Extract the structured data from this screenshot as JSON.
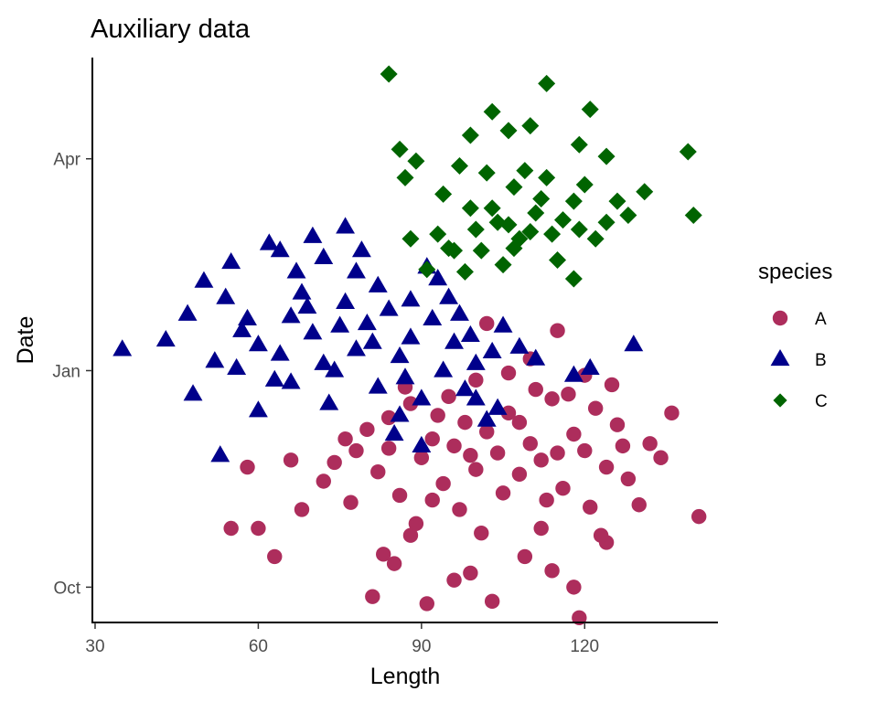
{
  "chart_data": {
    "type": "scatter",
    "title": "Auxiliary data",
    "xlabel": "Length",
    "ylabel": "Date",
    "xlim": [
      29.5,
      144.5
    ],
    "ylim": [
      "2010-09-16",
      "2011-05-14"
    ],
    "x_ticks": [
      30,
      60,
      90,
      120
    ],
    "y_ticks": [
      {
        "label": "Oct",
        "value": "2010-10-01"
      },
      {
        "label": "Jan",
        "value": "2011-01-01"
      },
      {
        "label": "Apr",
        "value": "2011-04-01"
      }
    ],
    "grid": false,
    "legend": {
      "title": "species",
      "position": "right"
    },
    "series": [
      {
        "name": "A",
        "marker": "circle",
        "color": "#AD2D5C",
        "points": [
          [
            55,
            "2010-10-26"
          ],
          [
            60,
            "2010-10-26"
          ],
          [
            63,
            "2010-10-14"
          ],
          [
            58,
            "2010-11-21"
          ],
          [
            66,
            "2010-11-24"
          ],
          [
            68,
            "2010-11-03"
          ],
          [
            72,
            "2010-11-15"
          ],
          [
            74,
            "2010-11-23"
          ],
          [
            76,
            "2010-12-03"
          ],
          [
            78,
            "2010-11-28"
          ],
          [
            80,
            "2010-12-07"
          ],
          [
            82,
            "2010-11-19"
          ],
          [
            84,
            "2010-12-12"
          ],
          [
            86,
            "2010-11-09"
          ],
          [
            88,
            "2010-12-18"
          ],
          [
            90,
            "2010-11-25"
          ],
          [
            92,
            "2010-12-03"
          ],
          [
            94,
            "2010-11-14"
          ],
          [
            96,
            "2010-11-30"
          ],
          [
            98,
            "2010-12-10"
          ],
          [
            100,
            "2010-11-20"
          ],
          [
            102,
            "2010-12-06"
          ],
          [
            104,
            "2010-11-27"
          ],
          [
            106,
            "2010-12-14"
          ],
          [
            108,
            "2010-11-18"
          ],
          [
            110,
            "2010-12-01"
          ],
          [
            112,
            "2010-11-24"
          ],
          [
            114,
            "2010-12-20"
          ],
          [
            116,
            "2010-11-12"
          ],
          [
            118,
            "2010-12-05"
          ],
          [
            120,
            "2010-11-28"
          ],
          [
            122,
            "2010-12-16"
          ],
          [
            124,
            "2010-11-21"
          ],
          [
            126,
            "2010-12-09"
          ],
          [
            128,
            "2010-11-16"
          ],
          [
            130,
            "2010-11-05"
          ],
          [
            132,
            "2010-12-01"
          ],
          [
            134,
            "2010-11-25"
          ],
          [
            136,
            "2010-12-14"
          ],
          [
            141,
            "2010-10-31"
          ],
          [
            81,
            "2010-09-27"
          ],
          [
            85,
            "2010-10-11"
          ],
          [
            91,
            "2010-09-24"
          ],
          [
            96,
            "2010-10-04"
          ],
          [
            103,
            "2010-09-25"
          ],
          [
            109,
            "2010-10-14"
          ],
          [
            118,
            "2010-10-01"
          ],
          [
            119,
            "2010-09-18"
          ],
          [
            124,
            "2010-10-20"
          ],
          [
            83,
            "2010-10-15"
          ],
          [
            88,
            "2010-10-23"
          ],
          [
            99,
            "2010-10-07"
          ],
          [
            114,
            "2010-10-08"
          ],
          [
            102,
            "2011-01-21"
          ],
          [
            106,
            "2010-12-31"
          ],
          [
            110,
            "2011-01-06"
          ],
          [
            115,
            "2011-01-18"
          ],
          [
            120,
            "2010-12-30"
          ],
          [
            125,
            "2010-12-26"
          ],
          [
            95,
            "2010-12-21"
          ],
          [
            87,
            "2010-12-25"
          ],
          [
            100,
            "2010-12-28"
          ],
          [
            111,
            "2010-12-24"
          ],
          [
            117,
            "2010-12-22"
          ],
          [
            92,
            "2010-11-07"
          ],
          [
            97,
            "2010-11-03"
          ],
          [
            105,
            "2010-11-10"
          ],
          [
            113,
            "2010-11-07"
          ],
          [
            121,
            "2010-11-04"
          ],
          [
            127,
            "2010-11-30"
          ],
          [
            89,
            "2010-10-28"
          ],
          [
            101,
            "2010-10-24"
          ],
          [
            112,
            "2010-10-26"
          ],
          [
            123,
            "2010-10-23"
          ],
          [
            77,
            "2010-11-06"
          ],
          [
            84,
            "2010-11-29"
          ],
          [
            93,
            "2010-12-13"
          ],
          [
            108,
            "2010-12-10"
          ],
          [
            115,
            "2010-11-27"
          ],
          [
            99,
            "2010-11-26"
          ]
        ]
      },
      {
        "name": "B",
        "marker": "triangle",
        "color": "#00008B",
        "points": [
          [
            35,
            "2011-01-10"
          ],
          [
            43,
            "2011-01-14"
          ],
          [
            47,
            "2011-01-25"
          ],
          [
            48,
            "2010-12-22"
          ],
          [
            50,
            "2011-02-08"
          ],
          [
            52,
            "2011-01-05"
          ],
          [
            53,
            "2010-11-26"
          ],
          [
            55,
            "2011-02-16"
          ],
          [
            56,
            "2011-01-02"
          ],
          [
            58,
            "2011-01-23"
          ],
          [
            60,
            "2010-12-15"
          ],
          [
            62,
            "2011-02-24"
          ],
          [
            64,
            "2011-01-08"
          ],
          [
            66,
            "2010-12-27"
          ],
          [
            68,
            "2011-02-03"
          ],
          [
            70,
            "2011-01-17"
          ],
          [
            72,
            "2011-02-18"
          ],
          [
            74,
            "2011-01-01"
          ],
          [
            76,
            "2011-01-30"
          ],
          [
            78,
            "2011-02-12"
          ],
          [
            80,
            "2011-01-21"
          ],
          [
            82,
            "2010-12-25"
          ],
          [
            84,
            "2011-01-27"
          ],
          [
            86,
            "2011-01-07"
          ],
          [
            88,
            "2011-01-31"
          ],
          [
            90,
            "2010-12-20"
          ],
          [
            92,
            "2011-01-23"
          ],
          [
            94,
            "2011-01-01"
          ],
          [
            96,
            "2011-01-13"
          ],
          [
            98,
            "2010-12-24"
          ],
          [
            100,
            "2011-01-04"
          ],
          [
            102,
            "2010-12-11"
          ],
          [
            104,
            "2010-12-16"
          ],
          [
            108,
            "2011-01-11"
          ],
          [
            111,
            "2011-01-06"
          ],
          [
            118,
            "2010-12-30"
          ],
          [
            121,
            "2011-01-02"
          ],
          [
            129,
            "2011-01-12"
          ],
          [
            90,
            "2010-11-30"
          ],
          [
            85,
            "2010-12-05"
          ],
          [
            64,
            "2011-02-21"
          ],
          [
            70,
            "2011-02-27"
          ],
          [
            76,
            "2011-03-03"
          ],
          [
            60,
            "2011-01-12"
          ],
          [
            66,
            "2011-01-24"
          ],
          [
            72,
            "2011-01-04"
          ],
          [
            78,
            "2011-01-10"
          ],
          [
            82,
            "2011-02-06"
          ],
          [
            88,
            "2011-01-15"
          ],
          [
            93,
            "2011-02-09"
          ],
          [
            97,
            "2011-01-25"
          ],
          [
            103,
            "2011-01-09"
          ],
          [
            57,
            "2011-01-18"
          ],
          [
            63,
            "2010-12-28"
          ],
          [
            69,
            "2011-01-28"
          ],
          [
            75,
            "2011-01-20"
          ],
          [
            81,
            "2011-01-13"
          ],
          [
            87,
            "2010-12-29"
          ],
          [
            95,
            "2011-02-01"
          ],
          [
            99,
            "2011-01-16"
          ],
          [
            105,
            "2011-01-20"
          ],
          [
            54,
            "2011-02-01"
          ],
          [
            79,
            "2011-02-21"
          ],
          [
            91,
            "2011-02-14"
          ],
          [
            73,
            "2010-12-18"
          ],
          [
            67,
            "2011-02-12"
          ],
          [
            86,
            "2010-12-13"
          ],
          [
            100,
            "2010-12-20"
          ]
        ]
      },
      {
        "name": "C",
        "marker": "diamond",
        "color": "#006400",
        "points": [
          [
            84,
            "2011-05-07"
          ],
          [
            113,
            "2011-05-03"
          ],
          [
            121,
            "2011-04-22"
          ],
          [
            103,
            "2011-04-21"
          ],
          [
            86,
            "2011-04-05"
          ],
          [
            89,
            "2011-03-31"
          ],
          [
            87,
            "2011-03-24"
          ],
          [
            99,
            "2011-04-11"
          ],
          [
            106,
            "2011-04-13"
          ],
          [
            110,
            "2011-04-15"
          ],
          [
            119,
            "2011-04-07"
          ],
          [
            124,
            "2011-04-02"
          ],
          [
            139,
            "2011-04-04"
          ],
          [
            140,
            "2011-03-08"
          ],
          [
            131,
            "2011-03-18"
          ],
          [
            128,
            "2011-03-08"
          ],
          [
            124,
            "2011-03-05"
          ],
          [
            118,
            "2011-03-14"
          ],
          [
            112,
            "2011-03-15"
          ],
          [
            107,
            "2011-03-20"
          ],
          [
            102,
            "2011-03-26"
          ],
          [
            97,
            "2011-03-29"
          ],
          [
            94,
            "2011-03-17"
          ],
          [
            93,
            "2011-02-28"
          ],
          [
            95,
            "2011-02-22"
          ],
          [
            98,
            "2011-02-12"
          ],
          [
            101,
            "2011-02-21"
          ],
          [
            104,
            "2011-03-05"
          ],
          [
            108,
            "2011-02-26"
          ],
          [
            111,
            "2011-03-09"
          ],
          [
            115,
            "2011-02-17"
          ],
          [
            118,
            "2011-02-09"
          ],
          [
            122,
            "2011-02-26"
          ],
          [
            126,
            "2011-03-14"
          ],
          [
            91,
            "2011-02-13"
          ],
          [
            88,
            "2011-02-26"
          ],
          [
            105,
            "2011-02-15"
          ],
          [
            109,
            "2011-03-27"
          ],
          [
            113,
            "2011-03-24"
          ],
          [
            116,
            "2011-03-06"
          ],
          [
            120,
            "2011-03-21"
          ],
          [
            103,
            "2011-03-11"
          ],
          [
            100,
            "2011-03-02"
          ],
          [
            96,
            "2011-02-21"
          ],
          [
            114,
            "2011-02-28"
          ],
          [
            119,
            "2011-03-02"
          ],
          [
            110,
            "2011-03-01"
          ],
          [
            106,
            "2011-03-04"
          ],
          [
            99,
            "2011-03-11"
          ],
          [
            107,
            "2011-02-22"
          ]
        ]
      }
    ]
  }
}
